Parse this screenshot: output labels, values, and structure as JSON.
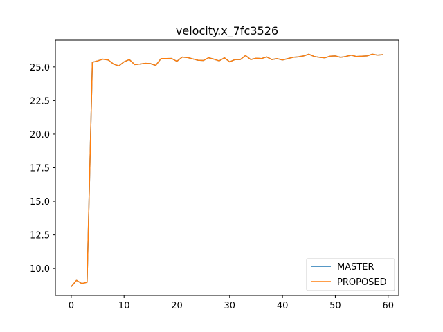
{
  "chart_data": {
    "type": "line",
    "title": "velocity.x_7fc3526",
    "xlabel": "",
    "ylabel": "",
    "xlim": [
      -3,
      62
    ],
    "ylim": [
      8.0,
      27.0
    ],
    "xticks": [
      0,
      10,
      20,
      30,
      40,
      50,
      60
    ],
    "yticks": [
      10.0,
      12.5,
      15.0,
      17.5,
      20.0,
      22.5,
      25.0
    ],
    "ytick_labels": [
      "10.0",
      "12.5",
      "15.0",
      "17.5",
      "20.0",
      "22.5",
      "25.0"
    ],
    "grid": false,
    "legend_position": "lower-right",
    "x": [
      0,
      1,
      2,
      3,
      4,
      5,
      6,
      7,
      8,
      9,
      10,
      11,
      12,
      13,
      14,
      15,
      16,
      17,
      18,
      19,
      20,
      21,
      22,
      23,
      24,
      25,
      26,
      27,
      28,
      29,
      30,
      31,
      32,
      33,
      34,
      35,
      36,
      37,
      38,
      39,
      40,
      41,
      42,
      43,
      44,
      45,
      46,
      47,
      48,
      49,
      50,
      51,
      52,
      53,
      54,
      55,
      56,
      57,
      58,
      59
    ],
    "series": [
      {
        "name": "MASTER",
        "color": "#1f77b4",
        "values": [
          8.65,
          9.12,
          8.88,
          8.98,
          25.35,
          25.45,
          25.58,
          25.52,
          25.22,
          25.08,
          25.38,
          25.55,
          25.18,
          25.22,
          25.27,
          25.25,
          25.12,
          25.62,
          25.62,
          25.63,
          25.42,
          25.73,
          25.7,
          25.6,
          25.5,
          25.48,
          25.68,
          25.58,
          25.45,
          25.68,
          25.38,
          25.55,
          25.55,
          25.85,
          25.55,
          25.65,
          25.62,
          25.75,
          25.55,
          25.62,
          25.52,
          25.62,
          25.72,
          25.75,
          25.82,
          25.95,
          25.78,
          25.72,
          25.68,
          25.8,
          25.82,
          25.72,
          25.78,
          25.88,
          25.78,
          25.8,
          25.82,
          25.95,
          25.88,
          25.92
        ]
      },
      {
        "name": "PROPOSED",
        "color": "#ff7f0e",
        "values": [
          8.65,
          9.12,
          8.88,
          8.98,
          25.35,
          25.45,
          25.58,
          25.52,
          25.22,
          25.08,
          25.38,
          25.55,
          25.18,
          25.22,
          25.27,
          25.25,
          25.12,
          25.62,
          25.62,
          25.63,
          25.42,
          25.73,
          25.7,
          25.6,
          25.5,
          25.48,
          25.68,
          25.58,
          25.45,
          25.68,
          25.38,
          25.55,
          25.55,
          25.85,
          25.55,
          25.65,
          25.62,
          25.75,
          25.55,
          25.62,
          25.52,
          25.62,
          25.72,
          25.75,
          25.82,
          25.95,
          25.78,
          25.72,
          25.68,
          25.8,
          25.82,
          25.72,
          25.78,
          25.88,
          25.78,
          25.8,
          25.82,
          25.95,
          25.88,
          25.92
        ]
      }
    ]
  }
}
